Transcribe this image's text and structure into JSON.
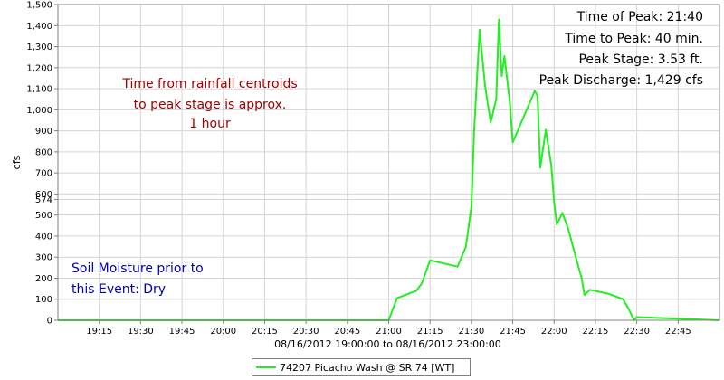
{
  "chart_data": {
    "type": "line",
    "xlabel": "08/16/2012 19:00:00 to 08/16/2012 23:00:00",
    "ylabel": "cfs",
    "x_range": [
      "19:00",
      "23:00"
    ],
    "ylim": [
      0,
      1500
    ],
    "grid": true,
    "legend_placement": "bottom-center",
    "x_ticks": [
      "19:15",
      "19:30",
      "19:45",
      "20:00",
      "20:15",
      "20:30",
      "20:45",
      "21:00",
      "21:15",
      "21:30",
      "21:45",
      "22:00",
      "22:15",
      "22:30",
      "22:45"
    ],
    "y_ticks": [
      "0",
      "100",
      "200",
      "300",
      "400",
      "500",
      "574",
      "600",
      "700",
      "800",
      "900",
      "1,000",
      "1,100",
      "1,200",
      "1,300",
      "1,400",
      "1,500"
    ],
    "y_tick_values": [
      0,
      100,
      200,
      300,
      400,
      500,
      574,
      600,
      700,
      800,
      900,
      1000,
      1100,
      1200,
      1300,
      1400,
      1500
    ],
    "series": [
      {
        "name": "74207 Picacho Wash @ SR 74 [WT]",
        "color": "#22ee22",
        "x": [
          "19:00",
          "21:00",
          "21:03",
          "21:07",
          "21:10",
          "21:12",
          "21:15",
          "21:25",
          "21:28",
          "21:30",
          "21:31",
          "21:33",
          "21:35",
          "21:37",
          "21:39",
          "21:40",
          "21:41",
          "21:42",
          "21:44",
          "21:45",
          "21:53",
          "21:54",
          "21:55",
          "21:57",
          "21:59",
          "22:00",
          "22:01",
          "22:03",
          "22:05",
          "22:08",
          "22:10",
          "22:11",
          "22:13",
          "22:20",
          "22:25",
          "22:27",
          "22:29",
          "22:30",
          "23:00"
        ],
        "y": [
          0,
          0,
          105,
          125,
          140,
          175,
          285,
          255,
          350,
          540,
          900,
          1380,
          1110,
          940,
          1050,
          1429,
          1160,
          1255,
          1030,
          845,
          1090,
          1065,
          725,
          905,
          735,
          560,
          455,
          510,
          440,
          295,
          200,
          120,
          145,
          125,
          100,
          55,
          0,
          15,
          0
        ]
      }
    ]
  },
  "annotations": {
    "right": [
      "Time of Peak: 21:40",
      "Time to Peak: 40 min.",
      "Peak Stage: 3.53 ft.",
      "Peak Discharge: 1,429 cfs"
    ],
    "red": [
      "Time from rainfall centroids",
      "to peak stage is approx.",
      "1 hour"
    ],
    "blue": [
      "Soil Moisture prior to",
      "this Event: Dry"
    ]
  },
  "legend": {
    "label": "74207 Picacho Wash @ SR 74 [WT]"
  }
}
